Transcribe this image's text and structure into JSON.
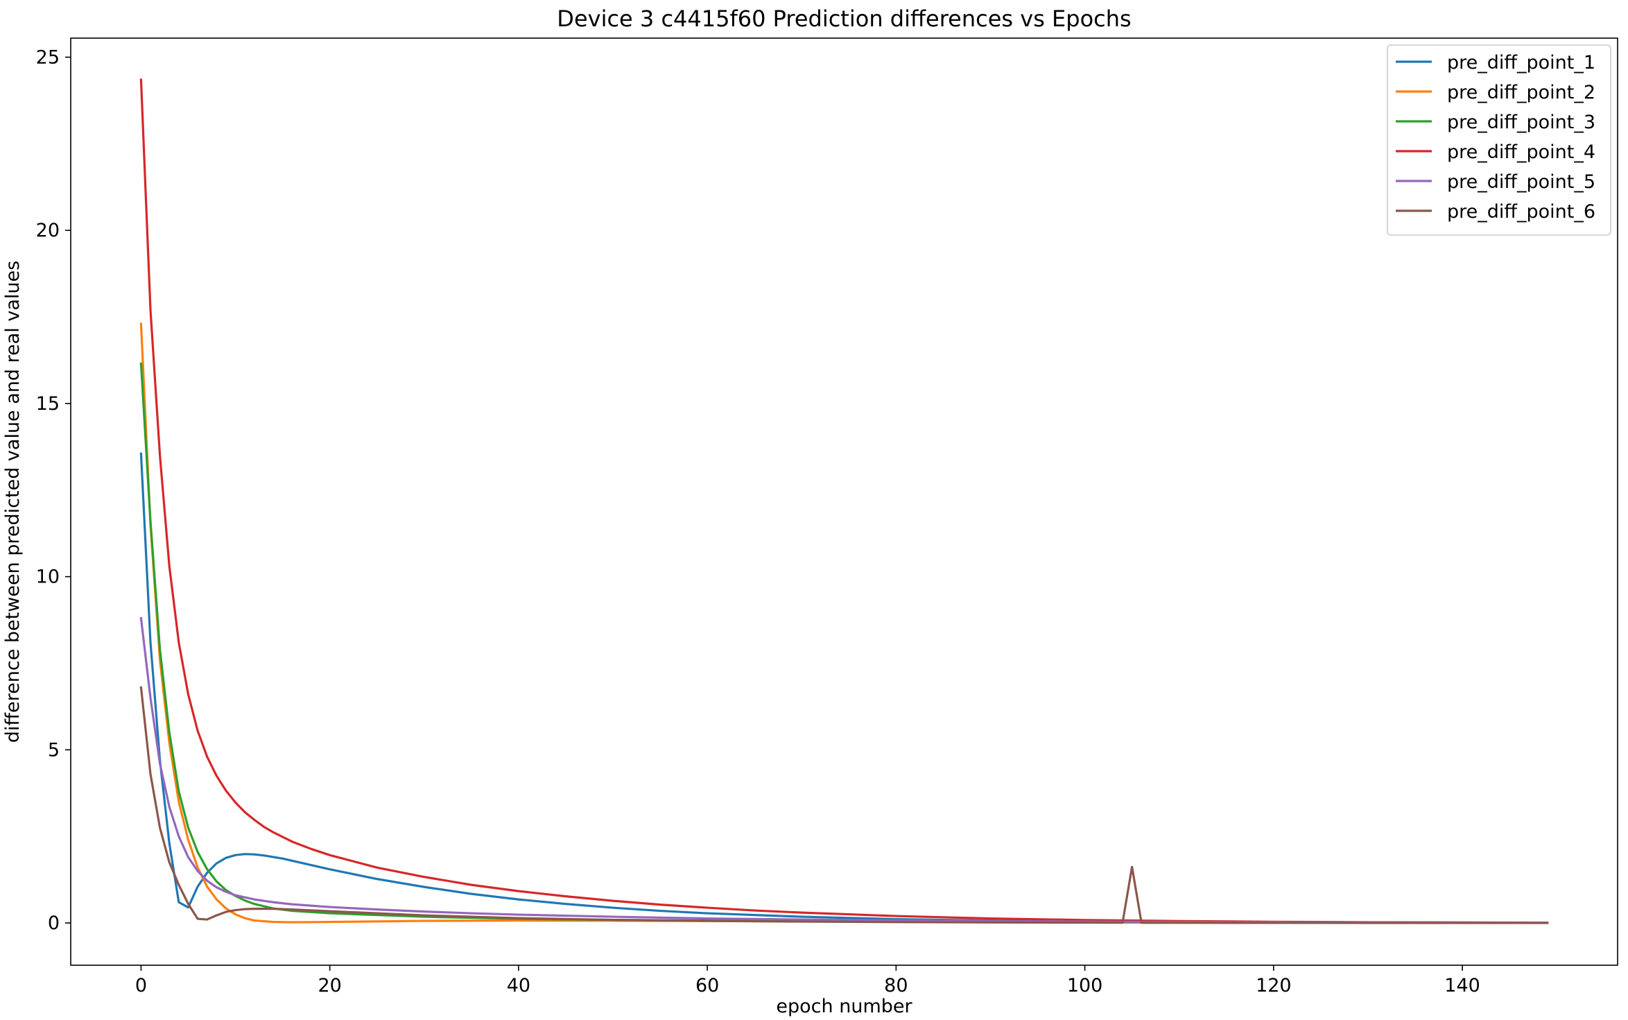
{
  "chart_data": {
    "type": "line",
    "title": "Device 3 c4415f60 Prediction differences vs Epochs",
    "xlabel": "epoch number",
    "ylabel": "difference between predicted value and real values",
    "xlim": [
      -7.45,
      156.45
    ],
    "ylim": [
      -1.22,
      25.55
    ],
    "xticks": [
      0,
      20,
      40,
      60,
      80,
      100,
      120,
      140
    ],
    "yticks": [
      0,
      5,
      10,
      15,
      20,
      25
    ],
    "grid": false,
    "legend_position": "top-right",
    "series": [
      {
        "name": "pre_diff_point_1",
        "color": "#1f77b4",
        "points": [
          [
            0,
            13.55
          ],
          [
            1,
            8.1
          ],
          [
            2,
            4.7
          ],
          [
            3,
            2.3
          ],
          [
            4,
            0.6
          ],
          [
            5,
            0.45
          ],
          [
            6,
            1.05
          ],
          [
            7,
            1.45
          ],
          [
            8,
            1.72
          ],
          [
            9,
            1.88
          ],
          [
            10,
            1.96
          ],
          [
            11,
            1.99
          ],
          [
            12,
            1.98
          ],
          [
            13,
            1.95
          ],
          [
            15,
            1.86
          ],
          [
            20,
            1.55
          ],
          [
            25,
            1.27
          ],
          [
            30,
            1.04
          ],
          [
            35,
            0.84
          ],
          [
            40,
            0.68
          ],
          [
            45,
            0.55
          ],
          [
            50,
            0.44
          ],
          [
            55,
            0.35
          ],
          [
            60,
            0.28
          ],
          [
            70,
            0.18
          ],
          [
            80,
            0.11
          ],
          [
            90,
            0.07
          ],
          [
            100,
            0.045
          ],
          [
            110,
            0.03
          ],
          [
            120,
            0.02
          ],
          [
            130,
            0.012
          ],
          [
            140,
            0.007
          ],
          [
            149,
            0.004
          ]
        ]
      },
      {
        "name": "pre_diff_point_2",
        "color": "#ff7f0e",
        "points": [
          [
            0,
            17.3
          ],
          [
            1,
            11.5
          ],
          [
            2,
            7.6
          ],
          [
            3,
            5.2
          ],
          [
            4,
            3.5
          ],
          [
            5,
            2.4
          ],
          [
            6,
            1.6
          ],
          [
            7,
            1.05
          ],
          [
            8,
            0.68
          ],
          [
            9,
            0.42
          ],
          [
            10,
            0.25
          ],
          [
            11,
            0.14
          ],
          [
            12,
            0.07
          ],
          [
            14,
            0.03
          ],
          [
            16,
            0.02
          ],
          [
            20,
            0.03
          ],
          [
            30,
            0.06
          ],
          [
            40,
            0.07
          ],
          [
            50,
            0.065
          ],
          [
            60,
            0.055
          ],
          [
            70,
            0.045
          ],
          [
            80,
            0.035
          ],
          [
            90,
            0.028
          ],
          [
            100,
            0.02
          ],
          [
            110,
            0.015
          ],
          [
            120,
            0.01
          ],
          [
            130,
            0.007
          ],
          [
            140,
            0.005
          ],
          [
            149,
            0.003
          ]
        ]
      },
      {
        "name": "pre_diff_point_3",
        "color": "#2ca02c",
        "points": [
          [
            0,
            16.15
          ],
          [
            1,
            11.6
          ],
          [
            2,
            7.9
          ],
          [
            3,
            5.5
          ],
          [
            4,
            3.8
          ],
          [
            5,
            2.75
          ],
          [
            6,
            2.05
          ],
          [
            7,
            1.55
          ],
          [
            8,
            1.2
          ],
          [
            9,
            0.95
          ],
          [
            10,
            0.78
          ],
          [
            11,
            0.65
          ],
          [
            12,
            0.55
          ],
          [
            14,
            0.42
          ],
          [
            16,
            0.35
          ],
          [
            20,
            0.28
          ],
          [
            30,
            0.18
          ],
          [
            40,
            0.12
          ],
          [
            50,
            0.09
          ],
          [
            60,
            0.07
          ],
          [
            70,
            0.055
          ],
          [
            80,
            0.04
          ],
          [
            90,
            0.03
          ],
          [
            100,
            0.022
          ],
          [
            110,
            0.016
          ],
          [
            120,
            0.011
          ],
          [
            130,
            0.008
          ],
          [
            140,
            0.005
          ],
          [
            149,
            0.003
          ]
        ]
      },
      {
        "name": "pre_diff_point_4",
        "color": "#d62728",
        "points": [
          [
            0,
            24.35
          ],
          [
            1,
            17.7
          ],
          [
            2,
            13.5
          ],
          [
            3,
            10.3
          ],
          [
            4,
            8.1
          ],
          [
            5,
            6.6
          ],
          [
            6,
            5.55
          ],
          [
            7,
            4.8
          ],
          [
            8,
            4.25
          ],
          [
            9,
            3.82
          ],
          [
            10,
            3.48
          ],
          [
            11,
            3.2
          ],
          [
            12,
            2.98
          ],
          [
            13,
            2.78
          ],
          [
            14,
            2.62
          ],
          [
            16,
            2.35
          ],
          [
            18,
            2.14
          ],
          [
            20,
            1.96
          ],
          [
            25,
            1.6
          ],
          [
            30,
            1.33
          ],
          [
            35,
            1.1
          ],
          [
            40,
            0.92
          ],
          [
            45,
            0.77
          ],
          [
            50,
            0.64
          ],
          [
            55,
            0.53
          ],
          [
            60,
            0.44
          ],
          [
            65,
            0.36
          ],
          [
            70,
            0.3
          ],
          [
            75,
            0.25
          ],
          [
            80,
            0.2
          ],
          [
            90,
            0.13
          ],
          [
            100,
            0.085
          ],
          [
            110,
            0.055
          ],
          [
            120,
            0.035
          ],
          [
            130,
            0.022
          ],
          [
            140,
            0.014
          ],
          [
            149,
            0.009
          ]
        ]
      },
      {
        "name": "pre_diff_point_5",
        "color": "#9467bd",
        "points": [
          [
            0,
            8.8
          ],
          [
            1,
            6.5
          ],
          [
            2,
            4.6
          ],
          [
            3,
            3.35
          ],
          [
            4,
            2.5
          ],
          [
            5,
            1.9
          ],
          [
            6,
            1.5
          ],
          [
            7,
            1.22
          ],
          [
            8,
            1.03
          ],
          [
            9,
            0.9
          ],
          [
            10,
            0.8
          ],
          [
            12,
            0.68
          ],
          [
            14,
            0.6
          ],
          [
            16,
            0.54
          ],
          [
            20,
            0.46
          ],
          [
            25,
            0.39
          ],
          [
            30,
            0.33
          ],
          [
            35,
            0.28
          ],
          [
            40,
            0.24
          ],
          [
            50,
            0.18
          ],
          [
            60,
            0.13
          ],
          [
            70,
            0.1
          ],
          [
            80,
            0.075
          ],
          [
            90,
            0.055
          ],
          [
            100,
            0.04
          ],
          [
            110,
            0.03
          ],
          [
            120,
            0.022
          ],
          [
            130,
            0.016
          ],
          [
            140,
            0.011
          ],
          [
            149,
            0.008
          ]
        ]
      },
      {
        "name": "pre_diff_point_6",
        "color": "#8c564b",
        "points": [
          [
            0,
            6.8
          ],
          [
            1,
            4.3
          ],
          [
            2,
            2.75
          ],
          [
            3,
            1.75
          ],
          [
            4,
            1.1
          ],
          [
            5,
            0.55
          ],
          [
            6,
            0.12
          ],
          [
            7,
            0.1
          ],
          [
            8,
            0.22
          ],
          [
            9,
            0.32
          ],
          [
            10,
            0.37
          ],
          [
            11,
            0.4
          ],
          [
            12,
            0.41
          ],
          [
            14,
            0.41
          ],
          [
            16,
            0.39
          ],
          [
            20,
            0.34
          ],
          [
            25,
            0.28
          ],
          [
            30,
            0.22
          ],
          [
            35,
            0.18
          ],
          [
            40,
            0.14
          ],
          [
            50,
            0.09
          ],
          [
            60,
            0.06
          ],
          [
            70,
            0.04
          ],
          [
            80,
            0.025
          ],
          [
            90,
            0.016
          ],
          [
            100,
            0.01
          ],
          [
            104,
            0.008
          ],
          [
            105,
            1.62
          ],
          [
            106,
            0.006
          ],
          [
            110,
            0.005
          ],
          [
            120,
            0.003
          ],
          [
            130,
            0.002
          ],
          [
            140,
            0.001
          ],
          [
            149,
            0.0
          ]
        ]
      }
    ]
  }
}
